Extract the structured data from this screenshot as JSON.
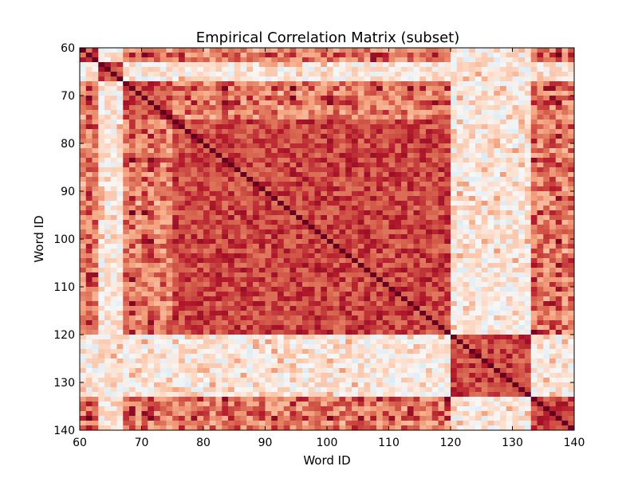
{
  "chart_data": {
    "type": "heatmap",
    "title": "Empirical Correlation Matrix (subset)",
    "xlabel": "Word ID",
    "ylabel": "Word ID",
    "x_range": [
      60,
      140
    ],
    "y_range": [
      60,
      140
    ],
    "y_inverted": true,
    "x_ticks": [
      "60",
      "70",
      "80",
      "90",
      "100",
      "110",
      "120",
      "130",
      "140"
    ],
    "y_ticks": [
      "60",
      "70",
      "80",
      "90",
      "100",
      "110",
      "120",
      "130",
      "140"
    ],
    "colormap": "RdBu_r",
    "cluster_boundaries": [
      60,
      63,
      67,
      75,
      120,
      133,
      140
    ],
    "cluster_strength": [
      0.55,
      0.35,
      0.45,
      0.75,
      0.55,
      0.6
    ],
    "weak_groups": [
      [
        63,
        67
      ],
      [
        120,
        133
      ]
    ],
    "weak_value_range": [
      -0.1,
      0.25
    ],
    "strong_value_range": [
      0.3,
      0.85
    ],
    "diagonal_value": 1.0,
    "grid": false,
    "legend": "none"
  }
}
